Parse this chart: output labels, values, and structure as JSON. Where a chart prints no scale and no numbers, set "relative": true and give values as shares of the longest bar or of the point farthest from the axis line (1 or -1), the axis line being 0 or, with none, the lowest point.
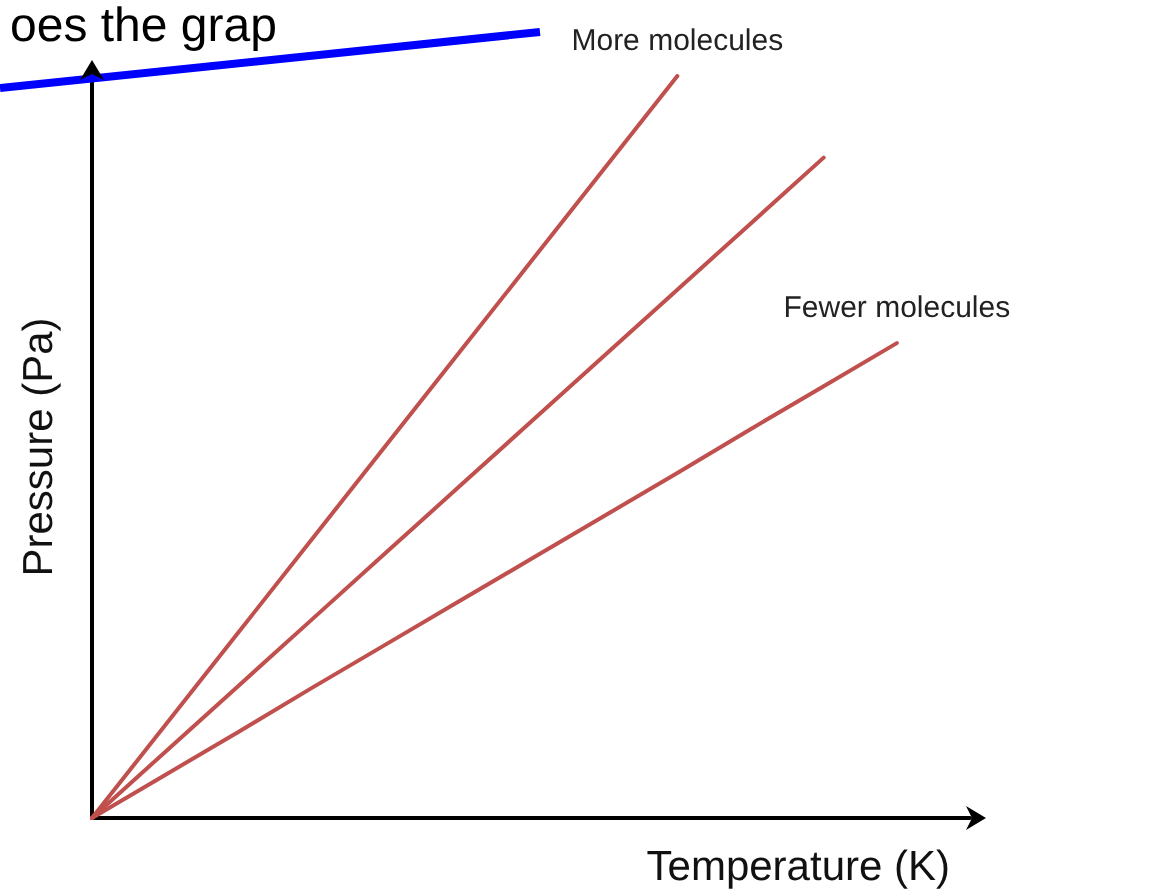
{
  "chart_data": {
    "type": "line",
    "title": "oes the grap",
    "xlabel": "Temperature (K)",
    "ylabel": "Pressure (Pa)",
    "relative": true,
    "grid": false,
    "legend": false,
    "marker": "none",
    "line_style": "solid",
    "categories": [
      null,
      null,
      null,
      null,
      null,
      null,
      null,
      null,
      null,
      null,
      null,
      null,
      null
    ],
    "series": [
      {
        "name": "More molecules",
        "color": "#c0504d",
        "values": [
          0,
          0.125,
          0.25,
          0.375,
          0.5,
          0.625,
          0.75,
          0.875,
          1,
          null,
          null,
          null,
          null
        ]
      },
      {
        "color": "#c0504d",
        "values": [
          0,
          0.089,
          0.178,
          0.267,
          0.356,
          0.445,
          0.534,
          0.623,
          0.712,
          0.801,
          0.89,
          null,
          null
        ]
      },
      {
        "name": "Fewer molecules",
        "color": "#c0504d",
        "values": [
          0,
          0.058,
          0.116,
          0.175,
          0.233,
          0.291,
          0.349,
          0.407,
          0.465,
          0.524,
          0.582,
          0.64,
          null
        ]
      }
    ]
  }
}
